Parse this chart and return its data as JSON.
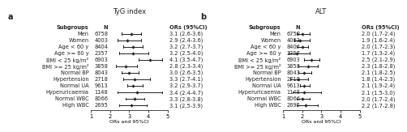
{
  "panel_a": {
    "title": "TyG index",
    "label": "a",
    "xlabel": "ORs and 95%CI",
    "xlim": [
      1,
      5
    ],
    "xticks": [
      1,
      2,
      3,
      4,
      5
    ],
    "subgroups": [
      "Subgroups",
      "Men",
      "Women",
      "Age < 60 y",
      "Age >= 60 y",
      "BMI < 25 kg/m²",
      "BMI >= 25 kg/m²",
      "Normal BP",
      "Hypertension",
      "Normal UA",
      "Hyperuricaemia",
      "Normal WBC",
      "High WBC"
    ],
    "N": [
      "N",
      "6758",
      "4003",
      "8404",
      "2357",
      "6903",
      "3858",
      "8043",
      "2718",
      "9613",
      "1148",
      "8066",
      "2695"
    ],
    "OR": [
      null,
      3.1,
      2.9,
      3.2,
      3.2,
      4.1,
      2.8,
      3.0,
      3.3,
      3.2,
      3.4,
      3.3,
      3.1
    ],
    "CI_lo": [
      null,
      2.6,
      2.4,
      2.7,
      2.5,
      3.5,
      2.3,
      2.6,
      2.7,
      2.9,
      2.4,
      2.8,
      2.5
    ],
    "CI_hi": [
      null,
      3.6,
      3.6,
      3.7,
      4.0,
      4.7,
      3.4,
      3.5,
      4.1,
      3.7,
      4.7,
      3.8,
      3.9
    ],
    "OR_labels": [
      "ORs (95%CI)",
      "3.1 (2.6-3.6)",
      "2.9 (2.4-3.6)",
      "3.2 (2.7-3.7)",
      "3.2 (2.5-4.0)",
      "4.1 (3.5-4.7)",
      "2.8 (2.3-3.4)",
      "3.0 (2.6-3.5)",
      "3.3 (2.7-4.1)",
      "3.2 (2.9-3.7)",
      "3.4 (2.4-4.7)",
      "3.3 (2.8-3.8)",
      "3.1 (2.5-3.9)"
    ]
  },
  "panel_b": {
    "title": "ALT",
    "label": "b",
    "xlabel": "ORs and 95%CI",
    "xlim": [
      1,
      5
    ],
    "xticks": [
      1,
      2,
      3,
      4,
      5
    ],
    "subgroups": [
      "Subgroups",
      "Men",
      "Women",
      "Age < 60 y",
      "Age >= 60 y",
      "BMI < 25 kg/m²",
      "BMI >= 25 kg/m²",
      "Normal BP",
      "Hypertension",
      "Normal UA",
      "Hyperuricaemia",
      "Normal WBC",
      "High WBC"
    ],
    "N": [
      "N",
      "6758",
      "4003",
      "8404",
      "2357",
      "6903",
      "3858",
      "8043",
      "2718",
      "9613",
      "1148",
      "8066",
      "2695"
    ],
    "OR": [
      null,
      2.0,
      1.9,
      2.0,
      1.7,
      2.5,
      2.3,
      2.1,
      1.8,
      2.1,
      2.1,
      2.0,
      2.2
    ],
    "CI_lo": [
      null,
      1.7,
      1.6,
      1.7,
      1.3,
      2.1,
      1.8,
      1.8,
      1.4,
      1.9,
      1.5,
      1.7,
      1.7
    ],
    "CI_hi": [
      null,
      2.4,
      2.4,
      2.3,
      2.4,
      2.9,
      2.8,
      2.5,
      2.3,
      2.4,
      3.0,
      2.4,
      2.8
    ],
    "OR_labels": [
      "ORs (95%CI)",
      "2.0 (1.7-2.4)",
      "1.9 (1.6-2.4)",
      "2.0 (1.7-2.3)",
      "1.7 (1.3-2.4)",
      "2.5 (2.1-2.9)",
      "2.3 (1.8-2.8)",
      "2.1 (1.8-2.5)",
      "1.8 (1.4-2.3)",
      "2.1 (1.9-2.4)",
      "2.1 (1.5-3.0)",
      "2.0 (1.7-2.4)",
      "2.2 (1.7-2.8)"
    ]
  },
  "text_color": "#222222",
  "marker_color": "#222222",
  "line_color": "#222222",
  "bg_color": "#ffffff",
  "fontsize": 4.8,
  "title_fontsize": 6.0,
  "panel_label_fontsize": 7.0
}
